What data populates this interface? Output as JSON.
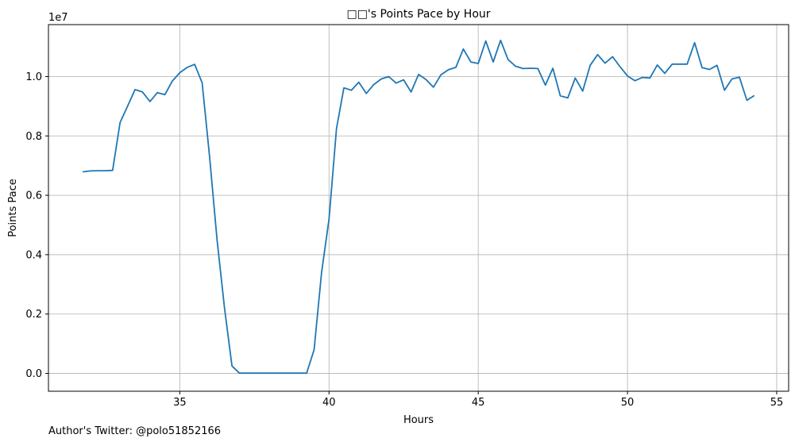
{
  "chart_data": {
    "type": "line",
    "title": "□□'s Points Pace by Hour",
    "xlabel": "Hours",
    "ylabel": "Points Pace",
    "y_offset_label": "1e7",
    "xlim": [
      30.6,
      55.4
    ],
    "ylim": [
      -600000,
      11750000
    ],
    "xticks": [
      35,
      40,
      45,
      50,
      55
    ],
    "yticks": [
      0,
      2000000,
      4000000,
      6000000,
      8000000,
      10000000
    ],
    "ytick_labels": [
      "0.0",
      "0.2",
      "0.4",
      "0.6",
      "0.8",
      "1.0"
    ],
    "xtick_labels": [
      "35",
      "40",
      "45",
      "50",
      "55"
    ],
    "grid": true,
    "line_color": "#1f77b4",
    "series": [
      {
        "x": [
          31.75,
          32.0,
          32.25,
          32.5,
          32.75,
          33.0,
          33.25,
          33.5,
          33.75,
          34.0,
          34.25,
          34.5,
          34.75,
          35.0,
          35.25,
          35.5,
          35.75,
          36.0,
          36.25,
          36.5,
          36.75,
          37.0,
          37.25,
          37.5,
          37.75,
          38.0,
          38.25,
          38.5,
          38.75,
          39.0,
          39.25,
          39.5,
          39.75,
          40.0,
          40.25,
          40.5,
          40.75,
          41.0,
          41.25,
          41.5,
          41.75,
          42.0,
          42.25,
          42.5,
          42.75,
          43.0,
          43.25,
          43.5,
          43.75,
          44.0,
          44.25,
          44.5,
          44.75,
          45.0,
          45.25,
          45.5,
          45.75,
          46.0,
          46.25,
          46.5,
          46.75,
          47.0,
          47.25,
          47.5,
          47.75,
          48.0,
          48.25,
          48.5,
          48.75,
          49.0,
          49.25,
          49.5,
          49.75,
          50.0,
          50.25,
          50.5,
          50.75,
          51.0,
          51.25,
          51.5,
          51.75,
          52.0,
          52.25,
          52.5,
          52.75,
          53.0,
          53.25,
          53.5,
          53.75,
          54.0,
          54.25
        ],
        "values": [
          6790000,
          6820000,
          6830000,
          6830000,
          6840000,
          8450000,
          9000000,
          9560000,
          9480000,
          9160000,
          9460000,
          9390000,
          9850000,
          10130000,
          10310000,
          10410000,
          9790000,
          7300000,
          4500000,
          2200000,
          250000,
          10000,
          10000,
          10000,
          10000,
          10000,
          10000,
          10000,
          10000,
          10000,
          10000,
          800000,
          3400000,
          5200000,
          8250000,
          9620000,
          9540000,
          9810000,
          9430000,
          9730000,
          9920000,
          10000000,
          9780000,
          9890000,
          9480000,
          10070000,
          9900000,
          9640000,
          10060000,
          10230000,
          10310000,
          10930000,
          10490000,
          10440000,
          11200000,
          10490000,
          11220000,
          10570000,
          10350000,
          10270000,
          10280000,
          10270000,
          9710000,
          10280000,
          9350000,
          9280000,
          9950000,
          9510000,
          10380000,
          10740000,
          10450000,
          10670000,
          10330000,
          10020000,
          9860000,
          9970000,
          9950000,
          10390000,
          10110000,
          10420000,
          10420000,
          10420000,
          11140000,
          10300000,
          10240000,
          10380000,
          9540000,
          9920000,
          9980000,
          9200000,
          9360000
        ]
      }
    ]
  },
  "footer": {
    "author": "Author's Twitter: @polo51852166"
  }
}
